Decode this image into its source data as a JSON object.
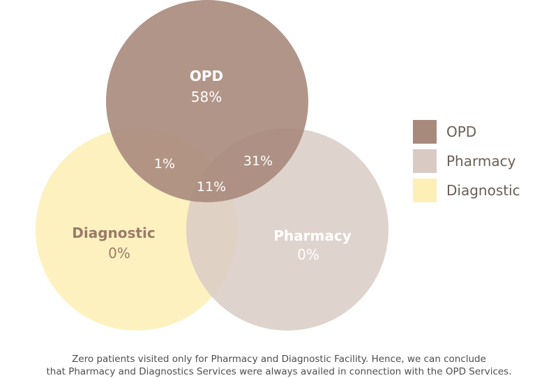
{
  "colors": {
    "opd": "#a88a7c",
    "pharmacy": "#d9cbc4",
    "diagnostic": "#fdefb5",
    "label_light": "#ffffff",
    "label_dark": "#9b7a67"
  },
  "circles": {
    "opd": {
      "name": "OPD",
      "value": "58%"
    },
    "diagnostic": {
      "name": "Diagnostic",
      "value": "0%"
    },
    "pharmacy": {
      "name": "Pharmacy",
      "value": "0%"
    }
  },
  "overlaps": {
    "opd_diagnostic": "1%",
    "opd_pharmacy": "31%",
    "all_three": "11%"
  },
  "legend": [
    {
      "label": "OPD",
      "color": "#a88a7c"
    },
    {
      "label": "Pharmacy",
      "color": "#d9cbc4"
    },
    {
      "label": "Diagnostic",
      "color": "#fdefb5"
    }
  ],
  "footnote": {
    "line1": "Zero patients visited only for Pharmacy and Diagnostic Facility. Hence, we can conclude",
    "line2": "that Pharmacy and Diagnostics Services were always availed in connection with the OPD Services."
  }
}
